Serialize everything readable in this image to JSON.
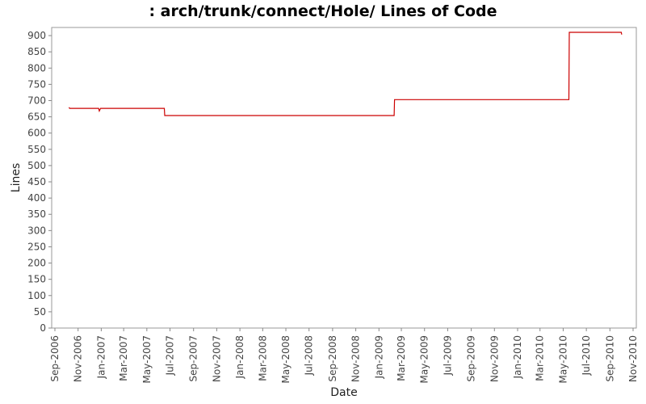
{
  "chart_data": {
    "type": "line",
    "title": ": arch/trunk/connect/Hole/ Lines of Code",
    "xlabel": "Date",
    "ylabel": "Lines",
    "ylim": [
      0,
      925
    ],
    "xlim": [
      "2006-09-01",
      "2010-11-01"
    ],
    "yticks": [
      0,
      50,
      100,
      150,
      200,
      250,
      300,
      350,
      400,
      450,
      500,
      550,
      600,
      650,
      700,
      750,
      800,
      850,
      900
    ],
    "xticks": [
      "Sep-2006",
      "Nov-2006",
      "Jan-2007",
      "Mar-2007",
      "May-2007",
      "Jul-2007",
      "Sep-2007",
      "Nov-2007",
      "Jan-2008",
      "Mar-2008",
      "May-2008",
      "Jul-2008",
      "Sep-2008",
      "Nov-2008",
      "Jan-2009",
      "Mar-2009",
      "May-2009",
      "Jul-2009",
      "Sep-2009",
      "Nov-2009",
      "Jan-2010",
      "Mar-2010",
      "May-2010",
      "Jul-2010",
      "Sep-2010",
      "Nov-2010"
    ],
    "grid": false,
    "legend": "none",
    "series": [
      {
        "color": "#cc0000",
        "points": [
          {
            "x": "2006-10-08",
            "y": 679
          },
          {
            "x": "2006-10-10",
            "y": 676
          },
          {
            "x": "2006-12-25",
            "y": 676
          },
          {
            "x": "2006-12-27",
            "y": 668
          },
          {
            "x": "2006-12-30",
            "y": 676
          },
          {
            "x": "2007-06-16",
            "y": 676
          },
          {
            "x": "2007-06-17",
            "y": 654
          },
          {
            "x": "2009-02-10",
            "y": 654
          },
          {
            "x": "2009-02-11",
            "y": 703
          },
          {
            "x": "2010-05-16",
            "y": 703
          },
          {
            "x": "2010-05-17",
            "y": 910
          },
          {
            "x": "2010-10-01",
            "y": 910
          },
          {
            "x": "2010-10-02",
            "y": 903
          }
        ]
      }
    ]
  }
}
